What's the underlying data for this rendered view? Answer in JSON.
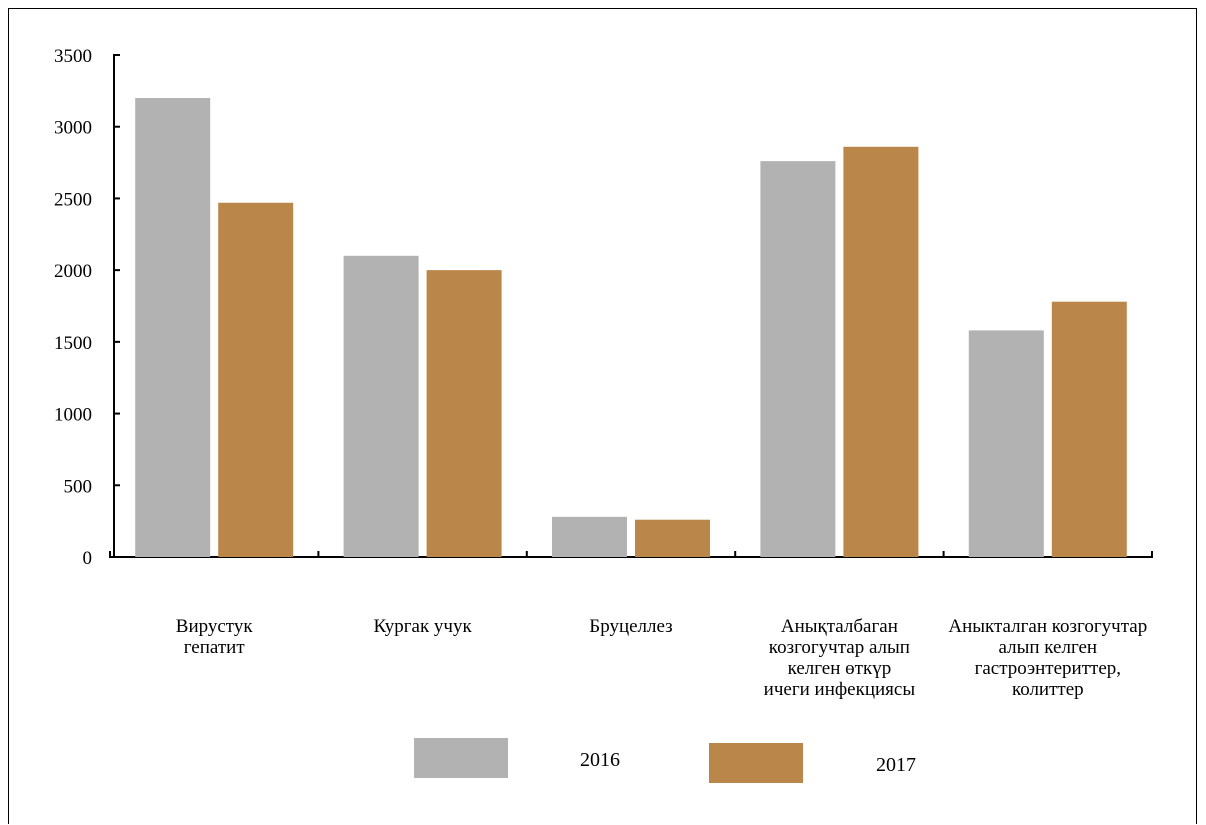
{
  "chart_data": {
    "type": "bar",
    "categories": [
      [
        "Вирустук",
        "гепатит"
      ],
      [
        "Кургак учук"
      ],
      [
        "Бруцеллез"
      ],
      [
        "Анықталбаган",
        "козгогучтар  алып",
        "келген өткүр",
        "ичеги инфекциясы"
      ],
      [
        "Аныкталган козгогучтар",
        "алып келген",
        "гастроэнтериттер,",
        "колиттер"
      ]
    ],
    "series": [
      {
        "name": "2016",
        "color": "#b2b2b2",
        "values": [
          3200,
          2100,
          280,
          2760,
          1580
        ]
      },
      {
        "name": "2017",
        "color": "#bb8649",
        "values": [
          2470,
          2000,
          260,
          2860,
          1780
        ]
      }
    ],
    "yticks": [
      "0",
      "500",
      "1000",
      "1500",
      "2000",
      "2500",
      "3000",
      "3500"
    ],
    "ylim": [
      0,
      3500
    ],
    "grid": false,
    "legend": "bottom"
  }
}
